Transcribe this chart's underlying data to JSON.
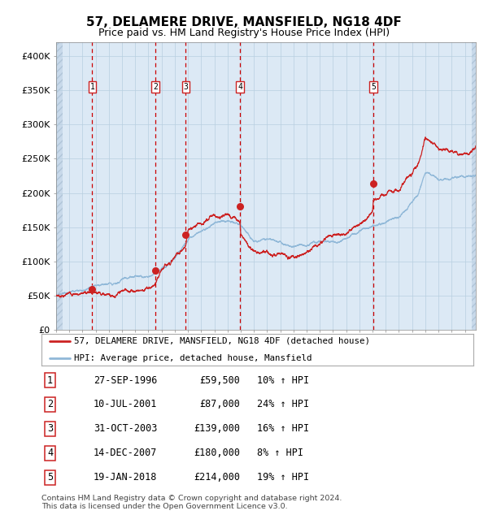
{
  "title": "57, DELAMERE DRIVE, MANSFIELD, NG18 4DF",
  "subtitle": "Price paid vs. HM Land Registry's House Price Index (HPI)",
  "ylim": [
    0,
    420000
  ],
  "yticks": [
    0,
    50000,
    100000,
    150000,
    200000,
    250000,
    300000,
    350000,
    400000
  ],
  "ytick_labels": [
    "£0",
    "£50K",
    "£100K",
    "£150K",
    "£200K",
    "£250K",
    "£300K",
    "£350K",
    "£400K"
  ],
  "xlim_start": 1994.0,
  "xlim_end": 2025.83,
  "background_color": "#dce9f5",
  "grid_color": "#b8cfe0",
  "line_color_hpi": "#90b8d8",
  "line_color_price": "#cc2222",
  "vline_color": "#cc0000",
  "sale_dates_decimal": [
    1996.74,
    2001.53,
    2003.83,
    2007.95,
    2018.05
  ],
  "sale_prices": [
    59500,
    87000,
    139000,
    180000,
    214000
  ],
  "sale_labels": [
    "1",
    "2",
    "3",
    "4",
    "5"
  ],
  "sale_date_strings": [
    "27-SEP-1996",
    "10-JUL-2001",
    "31-OCT-2003",
    "14-DEC-2007",
    "19-JAN-2018"
  ],
  "sale_price_strings": [
    "£59,500",
    "£87,000",
    "£139,000",
    "£180,000",
    "£214,000"
  ],
  "sale_pct_strings": [
    "10% ↑ HPI",
    "24% ↑ HPI",
    "16% ↑ HPI",
    "8% ↑ HPI",
    "19% ↑ HPI"
  ],
  "legend_line1": "57, DELAMERE DRIVE, MANSFIELD, NG18 4DF (detached house)",
  "legend_line2": "HPI: Average price, detached house, Mansfield",
  "footer": "Contains HM Land Registry data © Crown copyright and database right 2024.\nThis data is licensed under the Open Government Licence v3.0."
}
